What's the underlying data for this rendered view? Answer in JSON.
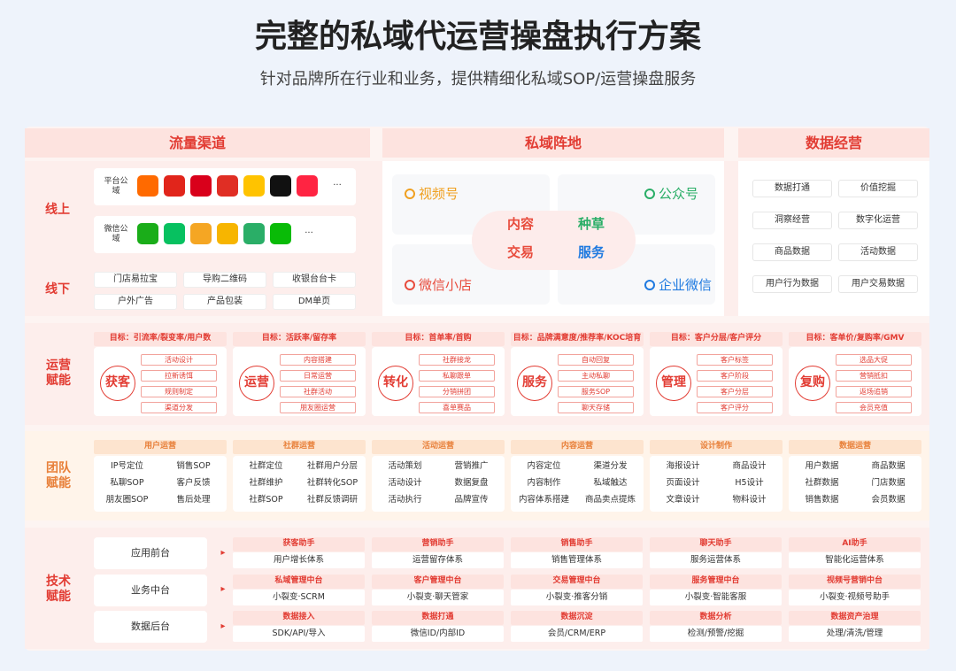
{
  "header": {
    "title": "完整的私域代运营操盘执行方案",
    "subtitle": "针对品牌所在行业和业务，提供精细化私域SOP/运营操盘服务"
  },
  "columns": [
    "流量渠道",
    "私域阵地",
    "数据经营"
  ],
  "row_labels": {
    "online": "线上",
    "offline": "线下",
    "operation": "运营赋能",
    "team": "团队赋能",
    "tech": "技术赋能"
  },
  "traffic": {
    "platform_label": "平台公域",
    "wechat_label": "微信公域",
    "more": "···",
    "platform_icons": [
      "#ff6a00",
      "#e1251b",
      "#d9001b",
      "#e02e24",
      "#ffc300",
      "#111111",
      "#ff2442"
    ],
    "wechat_icons": [
      "#1aad19",
      "#07c160",
      "#f5a623",
      "#f7b500",
      "#2aae67",
      "#09bb07"
    ],
    "offline": [
      "门店易拉宝",
      "导购二维码",
      "收银台台卡",
      "户外广告",
      "产品包装",
      "DM单页"
    ]
  },
  "private": {
    "channels": [
      "视频号",
      "公众号",
      "微信小店",
      "企业微信"
    ],
    "channel_colors": [
      "#f0a020",
      "#2aae67",
      "#e84c3d",
      "#1f7ae0"
    ],
    "center": [
      "内容",
      "种草",
      "交易",
      "服务"
    ],
    "center_colors": [
      "#e84c3d",
      "#2aae67",
      "#e84c3d",
      "#1f7ae0"
    ]
  },
  "data_ops": [
    "数据打通",
    "价值挖掘",
    "洞察经营",
    "数字化运营",
    "商品数据",
    "活动数据",
    "用户行为数据",
    "用户交易数据"
  ],
  "operation": [
    {
      "goal": "目标：引流率/裂变率/用户数",
      "name": "获客",
      "items": [
        "活动设计",
        "拉新诱饵",
        "规则制定",
        "渠道分发"
      ]
    },
    {
      "goal": "目标：活跃率/留存率",
      "name": "运营",
      "items": [
        "内容搭建",
        "日常运营",
        "社群活动",
        "朋友圈运营"
      ]
    },
    {
      "goal": "目标：首单率/首购",
      "name": "转化",
      "items": [
        "社群接龙",
        "私聊跟单",
        "分销拼团",
        "喜单赛品"
      ]
    },
    {
      "goal": "目标：品牌满意度/推荐率/KOC培育",
      "name": "服务",
      "items": [
        "自动回复",
        "主动私聊",
        "服务SOP",
        "聊天存储"
      ]
    },
    {
      "goal": "目标：客户分层/客户评分",
      "name": "管理",
      "items": [
        "客户标签",
        "客户阶段",
        "客户分层",
        "客户评分"
      ]
    },
    {
      "goal": "目标：客单价/复购率/GMV",
      "name": "复购",
      "items": [
        "选品大促",
        "营销抵扣",
        "返场追销",
        "会员充值"
      ]
    }
  ],
  "team": [
    {
      "title": "用户运营",
      "items": [
        "IP号定位",
        "销售SOP",
        "私聊SOP",
        "客户反馈",
        "朋友圈SOP",
        "售后处理"
      ]
    },
    {
      "title": "社群运营",
      "items": [
        "社群定位",
        "社群用户分层",
        "社群维护",
        "社群转化SOP",
        "社群SOP",
        "社群反馈调研"
      ]
    },
    {
      "title": "活动运营",
      "items": [
        "活动策划",
        "营销推广",
        "活动设计",
        "数据复盘",
        "活动执行",
        "品牌宣传"
      ]
    },
    {
      "title": "内容运营",
      "items": [
        "内容定位",
        "渠道分发",
        "内容制作",
        "私域触达",
        "内容体系搭建",
        "商品卖点提炼"
      ]
    },
    {
      "title": "设计制作",
      "items": [
        "海报设计",
        "商品设计",
        "页面设计",
        "H5设计",
        "文章设计",
        "物料设计"
      ]
    },
    {
      "title": "数据运营",
      "items": [
        "用户数据",
        "商品数据",
        "社群数据",
        "门店数据",
        "销售数据",
        "会员数据"
      ]
    }
  ],
  "tech": {
    "layers": [
      "应用前台",
      "业务中台",
      "数据后台"
    ],
    "cards": [
      [
        {
          "title": "获客助手",
          "desc": "用户增长体系"
        },
        {
          "title": "营销助手",
          "desc": "运营留存体系"
        },
        {
          "title": "销售助手",
          "desc": "销售管理体系"
        },
        {
          "title": "聊天助手",
          "desc": "服务运营体系"
        },
        {
          "title": "AI助手",
          "desc": "智能化运营体系"
        }
      ],
      [
        {
          "title": "私域管理中台",
          "desc": "小裂变·SCRM"
        },
        {
          "title": "客户管理中台",
          "desc": "小裂变·聊天管家"
        },
        {
          "title": "交易管理中台",
          "desc": "小裂变·推客分销"
        },
        {
          "title": "服务管理中台",
          "desc": "小裂变·智能客服"
        },
        {
          "title": "视频号营销中台",
          "desc": "小裂变·视频号助手"
        }
      ],
      [
        {
          "title": "数据接入",
          "desc": "SDK/API/导入"
        },
        {
          "title": "数据打通",
          "desc": "微信ID/内部ID"
        },
        {
          "title": "数据沉淀",
          "desc": "会员/CRM/ERP"
        },
        {
          "title": "数据分析",
          "desc": "检测/预警/挖掘"
        },
        {
          "title": "数据资产治理",
          "desc": "处理/清洗/管理"
        }
      ]
    ]
  }
}
